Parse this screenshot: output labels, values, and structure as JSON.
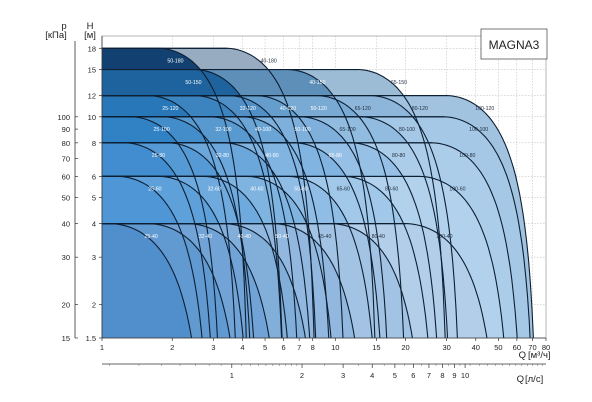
{
  "chart_data": {
    "type": "area",
    "title": "MAGNA3",
    "y_left_p": {
      "label_top": "p",
      "label_unit": "[кПа]",
      "ticks": [
        {
          "label": "15",
          "h": 1.5
        },
        {
          "label": "20",
          "h": 2
        },
        {
          "label": "30",
          "h": 3
        },
        {
          "label": "40",
          "h": 4
        },
        {
          "label": "50",
          "h": 5
        },
        {
          "label": "60",
          "h": 6
        },
        {
          "label": "70",
          "h": 7
        },
        {
          "label": "80",
          "h": 8
        },
        {
          "label": "90",
          "h": 9
        },
        {
          "label": "100",
          "h": 10
        }
      ]
    },
    "y_head": {
      "label_top": "H",
      "label_unit": "[м]",
      "scale": "log",
      "range": [
        1.5,
        20
      ],
      "ticks": [
        1.5,
        2,
        3,
        4,
        5,
        6,
        8,
        10,
        12,
        15,
        18
      ]
    },
    "x_flow_m3h": {
      "label": "Q",
      "unit": "[м³/ч]",
      "scale": "log",
      "range": [
        1,
        80
      ],
      "ticks": [
        1,
        2,
        3,
        4,
        5,
        6,
        7,
        8,
        10,
        15,
        20,
        30,
        40,
        50,
        60,
        70,
        80
      ]
    },
    "x_flow_ls": {
      "label": "Q",
      "unit": "[л/с]",
      "ticks": [
        1,
        2,
        3,
        4,
        5,
        6,
        7,
        8,
        9,
        10
      ]
    },
    "rows": [
      {
        "head": 18,
        "color": "#0d3d6e",
        "bands": [
          {
            "model": "40-180",
            "qmax": 8.2
          },
          {
            "model": "50-180",
            "qmax": 4.2
          }
        ]
      },
      {
        "head": 15,
        "color": "#19609c",
        "bands": [
          {
            "model": "65-150",
            "qmax": 30
          },
          {
            "model": "40-150",
            "qmax": 15
          },
          {
            "model": "50-150",
            "qmax": 6
          }
        ]
      },
      {
        "head": 12,
        "color": "#2474b8",
        "bands": [
          {
            "model": "100-120",
            "qmax": 72
          },
          {
            "model": "80-120",
            "qmax": 34
          },
          {
            "model": "65-120",
            "qmax": 20
          },
          {
            "model": "50-120",
            "qmax": 11
          },
          {
            "model": "40-120",
            "qmax": 8.4
          },
          {
            "model": "32-120",
            "qmax": 6
          },
          {
            "model": "25-120",
            "qmax": 3.8
          }
        ]
      },
      {
        "head": 10,
        "color": "#2d7fc4",
        "bands": [
          {
            "model": "100-100",
            "qmax": 70
          },
          {
            "model": "80-100",
            "qmax": 31
          },
          {
            "model": "65-100",
            "qmax": 17
          },
          {
            "model": "50-100",
            "qmax": 9.6
          },
          {
            "model": "40-100",
            "qmax": 7
          },
          {
            "model": "32-100",
            "qmax": 4.4
          },
          {
            "model": "25-100",
            "qmax": 3.2
          }
        ]
      },
      {
        "head": 8,
        "color": "#3d8bcf",
        "bands": [
          {
            "model": "100-80",
            "qmax": 62
          },
          {
            "model": "80-80",
            "qmax": 28
          },
          {
            "model": "65-80",
            "qmax": 16
          },
          {
            "model": "40-80",
            "qmax": 8
          },
          {
            "model": "32-80",
            "qmax": 4.6
          },
          {
            "model": "25-80",
            "qmax": 3
          }
        ]
      },
      {
        "head": 6,
        "color": "#4a94d5",
        "bands": [
          {
            "model": "100-60",
            "qmax": 55
          },
          {
            "model": "80-60",
            "qmax": 26
          },
          {
            "model": "65-60",
            "qmax": 15
          },
          {
            "model": "50-60",
            "qmax": 10
          },
          {
            "model": "40-60",
            "qmax": 6.5
          },
          {
            "model": "32-60",
            "qmax": 4.2
          },
          {
            "model": "25-60",
            "qmax": 2.8
          }
        ]
      },
      {
        "head": 4,
        "color": "#4d8ccb",
        "bands": [
          {
            "model": "100-40",
            "qmax": 48
          },
          {
            "model": "80-40",
            "qmax": 23
          },
          {
            "model": "65-40",
            "qmax": 13
          },
          {
            "model": "50-40",
            "qmax": 8
          },
          {
            "model": "40-40",
            "qmax": 5.6
          },
          {
            "model": "32-40",
            "qmax": 3.8
          },
          {
            "model": "25-40",
            "qmax": 2.6
          }
        ]
      }
    ],
    "extra_labels": [
      "50-150",
      "65-150",
      "25-120",
      "25-100",
      "65-120",
      "65-100",
      "80-60",
      "100-120"
    ]
  }
}
